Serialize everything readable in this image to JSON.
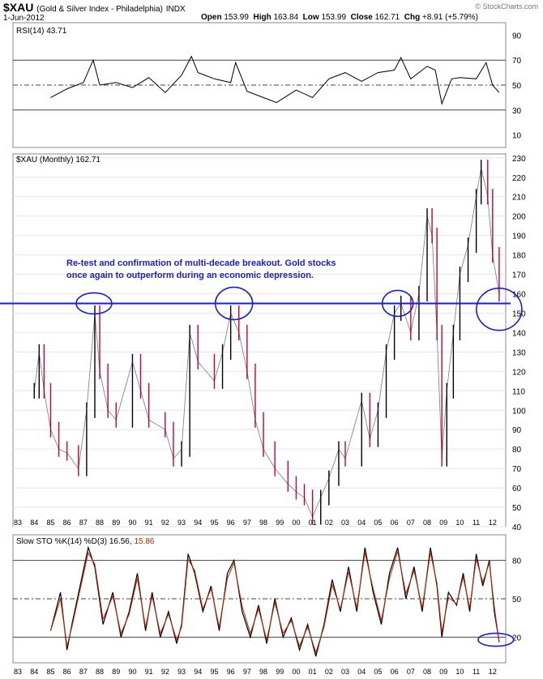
{
  "header": {
    "symbol": "$XAU",
    "description": "(Gold & Silver Index - Philadelphia)",
    "exchange": "INDX",
    "date": "1-Jun-2012",
    "open_label": "Open",
    "open": "153.99",
    "high_label": "High",
    "high": "163.84",
    "low_label": "Low",
    "low": "153.99",
    "close_label": "Close",
    "close": "162.71",
    "chg_label": "Chg",
    "chg": "+8.91 (+5.79%)",
    "credit": "© StockCharts.com"
  },
  "annotation": {
    "line1": "Re-test and confirmation of multi-decade breakout. Gold stocks",
    "line2": "once again to outperform during an economic depression."
  },
  "colors": {
    "up": "#000000",
    "down": "#cc0033",
    "annotation": "#1a1ae6",
    "signal": "#cc2200",
    "grid": "#000000"
  },
  "chart_data": [
    {
      "type": "line",
      "panel": "RSI",
      "title": "RSI(14) 43.71",
      "ylim": [
        0,
        100
      ],
      "yticks": [
        10,
        30,
        50,
        70,
        90
      ],
      "reference_lines": [
        30,
        50,
        70
      ],
      "x": [
        1985.0,
        1986.0,
        1987.0,
        1987.6,
        1988.0,
        1989.0,
        1990.0,
        1991.0,
        1992.0,
        1993.0,
        1993.6,
        1994.0,
        1995.0,
        1996.0,
        1996.3,
        1997.0,
        1998.0,
        1998.8,
        2000.0,
        2001.0,
        2002.0,
        2003.0,
        2004.0,
        2005.0,
        2006.0,
        2006.4,
        2007.0,
        2008.0,
        2008.5,
        2008.9,
        2009.5,
        2010.0,
        2011.0,
        2011.6,
        2012.0,
        2012.4
      ],
      "values": [
        40,
        47,
        52,
        70,
        50,
        52,
        48,
        56,
        44,
        58,
        73,
        60,
        55,
        52,
        68,
        45,
        40,
        36,
        46,
        40,
        55,
        60,
        53,
        60,
        62,
        72,
        55,
        65,
        62,
        35,
        55,
        56,
        55,
        68,
        50,
        44
      ]
    },
    {
      "type": "candlestick",
      "panel": "price",
      "title": "$XAU (Monthly) 162.71",
      "ylim": [
        40,
        232
      ],
      "yticks": [
        40,
        50,
        60,
        70,
        80,
        90,
        100,
        110,
        120,
        130,
        140,
        150,
        160,
        170,
        180,
        190,
        200,
        210,
        220,
        230
      ],
      "x_tick_labels": [
        "83",
        "84",
        "85",
        "86",
        "87",
        "88",
        "89",
        "90",
        "91",
        "92",
        "93",
        "94",
        "95",
        "96",
        "97",
        "98",
        "99",
        "00",
        "01",
        "02",
        "03",
        "04",
        "05",
        "06",
        "07",
        "08",
        "09",
        "10",
        "11",
        "12"
      ],
      "horizontal_line": 155,
      "x": [
        1984.0,
        1984.3,
        1984.6,
        1985.0,
        1985.5,
        1986.0,
        1986.7,
        1987.2,
        1987.7,
        1988.0,
        1988.5,
        1989.0,
        1990.0,
        1990.5,
        1991.0,
        1992.0,
        1992.5,
        1993.0,
        1993.5,
        1994.0,
        1995.0,
        1995.5,
        1996.0,
        1996.5,
        1997.0,
        1997.5,
        1998.0,
        1998.7,
        1999.5,
        2000.0,
        2000.5,
        2001.0,
        2001.5,
        2002.0,
        2002.6,
        2003.0,
        2004.0,
        2004.5,
        2005.0,
        2005.5,
        2006.0,
        2006.4,
        2007.0,
        2007.5,
        2008.0,
        2008.3,
        2008.6,
        2008.9,
        2009.2,
        2009.6,
        2010.0,
        2010.5,
        2011.0,
        2011.3,
        2011.7,
        2012.0,
        2012.4
      ],
      "values": [
        110,
        130,
        110,
        90,
        80,
        78,
        70,
        100,
        150,
        120,
        100,
        95,
        125,
        110,
        95,
        90,
        75,
        80,
        140,
        125,
        115,
        130,
        150,
        140,
        120,
        95,
        80,
        70,
        62,
        58,
        55,
        45,
        55,
        65,
        80,
        75,
        105,
        85,
        100,
        130,
        150,
        155,
        140,
        160,
        200,
        190,
        140,
        75,
        110,
        140,
        170,
        185,
        210,
        225,
        210,
        180,
        160
      ]
    },
    {
      "type": "line",
      "panel": "STO",
      "title_main": "Slow STO %K(14) %D(3) 16.56,",
      "title_value": "15.86",
      "ylim": [
        0,
        100
      ],
      "yticks": [
        20,
        50,
        80
      ],
      "reference_lines": [
        20,
        50,
        80
      ],
      "x_tick_labels": [
        "83",
        "84",
        "85",
        "86",
        "87",
        "88",
        "89",
        "90",
        "91",
        "92",
        "93",
        "94",
        "95",
        "96",
        "97",
        "98",
        "99",
        "00",
        "01",
        "02",
        "03",
        "04",
        "05",
        "06",
        "07",
        "08",
        "09",
        "10",
        "11",
        "12"
      ],
      "x": [
        1985.0,
        1985.6,
        1986.0,
        1986.3,
        1986.8,
        1987.3,
        1987.7,
        1988.2,
        1988.8,
        1989.3,
        1989.8,
        1990.3,
        1990.8,
        1991.2,
        1991.7,
        1992.2,
        1992.7,
        1993.0,
        1993.4,
        1993.8,
        1994.3,
        1994.8,
        1995.3,
        1995.8,
        1996.2,
        1996.7,
        1997.2,
        1997.7,
        1998.2,
        1998.7,
        1999.2,
        1999.7,
        2000.2,
        2000.7,
        2001.2,
        2001.7,
        2002.2,
        2002.7,
        2003.2,
        2003.7,
        2004.2,
        2004.7,
        2005.2,
        2005.7,
        2006.2,
        2006.7,
        2007.2,
        2007.7,
        2008.2,
        2008.6,
        2008.9,
        2009.3,
        2009.8,
        2010.2,
        2010.6,
        2011.0,
        2011.4,
        2011.8,
        2012.1,
        2012.4
      ],
      "k": [
        25,
        55,
        10,
        30,
        60,
        90,
        75,
        30,
        55,
        20,
        40,
        70,
        25,
        55,
        20,
        40,
        15,
        30,
        85,
        70,
        40,
        60,
        25,
        70,
        80,
        40,
        20,
        45,
        15,
        50,
        20,
        35,
        10,
        30,
        5,
        30,
        65,
        40,
        75,
        40,
        90,
        55,
        30,
        70,
        90,
        50,
        75,
        40,
        90,
        60,
        20,
        55,
        45,
        70,
        40,
        85,
        60,
        80,
        40,
        16.56
      ],
      "d": [
        25,
        50,
        13,
        28,
        57,
        86,
        77,
        34,
        52,
        23,
        38,
        66,
        28,
        52,
        23,
        38,
        18,
        28,
        81,
        72,
        42,
        58,
        28,
        66,
        78,
        44,
        23,
        42,
        18,
        47,
        23,
        33,
        13,
        28,
        8,
        28,
        61,
        42,
        71,
        43,
        86,
        58,
        33,
        66,
        87,
        54,
        72,
        43,
        86,
        62,
        24,
        51,
        46,
        67,
        43,
        81,
        63,
        78,
        44,
        15.86
      ]
    }
  ]
}
